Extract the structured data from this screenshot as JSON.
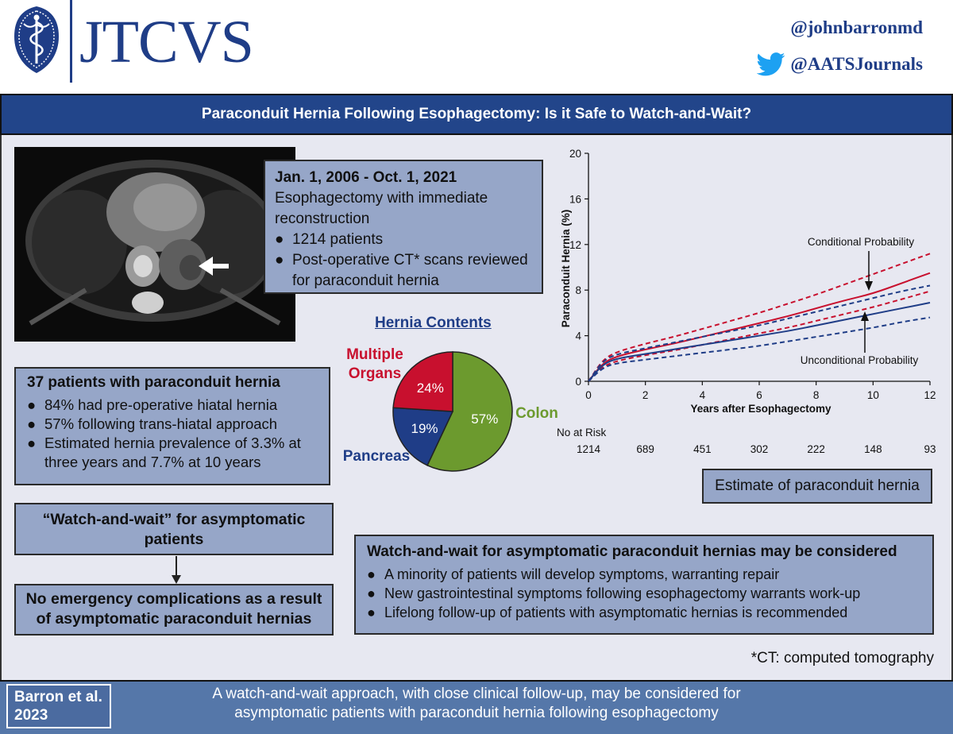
{
  "header": {
    "logo_text": "JTCVS",
    "handle_1": "@johnbarronmd",
    "handle_2": "@AATSJournals",
    "icons": [
      "caduceus-emblem",
      "twitter-bird-icon"
    ],
    "brand_color": "#1f3d87"
  },
  "title": "Paraconduit Hernia Following Esophagectomy: Is it Safe to Watch-and-Wait?",
  "study": {
    "dates": "Jan. 1, 2006 - Oct. 1, 2021",
    "line_1": "Esophagectomy with immediate",
    "line_2": "reconstruction",
    "bullets": [
      "1214 patients",
      "Post-operative CT* scans reviewed",
      "for paraconduit hernia"
    ]
  },
  "findings": {
    "heading": "37 patients with paraconduit hernia",
    "bullets": [
      "84% had pre-operative hiatal hernia",
      "57% following trans-hiatal approach",
      "Estimated hernia prevalence of 3.3% at",
      "three years and 7.7% at 10 years"
    ]
  },
  "watch_wait": {
    "line_1": "“Watch-and-wait” for asymptomatic",
    "line_2": "patients"
  },
  "emergency": {
    "line_1": "No emergency complications as a result",
    "line_2": "of asymptomatic paraconduit hernias"
  },
  "pie": {
    "title": "Hernia Contents",
    "labels": {
      "multiple": [
        "Multiple",
        "Organs"
      ],
      "pancreas": "Pancreas",
      "colon": "Colon"
    }
  },
  "estimate_label": "Estimate of paraconduit hernia",
  "conclusion": {
    "heading": "Watch-and-wait for asymptomatic paraconduit hernias may be considered",
    "bullets": [
      "A minority of patients will develop symptoms, warranting repair",
      "New gastrointestinal symptoms following esophagectomy warrants work-up",
      "Lifelong follow-up of patients with asymptomatic hernias is recommended"
    ]
  },
  "footnote": "*CT: computed tomography",
  "footer": {
    "author_1": "Barron et al.",
    "author_2": "2023",
    "text_1": "A watch-and-wait approach, with close clinical follow-up, may be considered for",
    "text_2": "asymptomatic patients with paraconduit hernia following esophagectomy"
  },
  "colors": {
    "title_bar": "#22458a",
    "panel": "#e7e8f1",
    "box": "#96a6c8",
    "footer": "#5577a9",
    "red": "#c8102e",
    "blue": "#1f3d87",
    "green": "#6c9a2e"
  },
  "chart_data": [
    {
      "type": "pie",
      "title": "Hernia Contents",
      "categories": [
        "Colon",
        "Pancreas",
        "Multiple Organs"
      ],
      "values": [
        57,
        19,
        24
      ],
      "value_labels": [
        "57%",
        "19%",
        "24%"
      ],
      "colors": [
        "#6c9a2e",
        "#1f3d87",
        "#c8102e"
      ]
    },
    {
      "type": "line",
      "title": "Estimate of paraconduit hernia",
      "xlabel": "Years after Esophagectomy",
      "ylabel": "Paraconduit Hernia (%)",
      "xlim": [
        0,
        12
      ],
      "ylim": [
        0,
        20
      ],
      "xticks": [
        0,
        2,
        4,
        6,
        8,
        10,
        12
      ],
      "yticks": [
        0,
        4,
        8,
        12,
        16,
        20
      ],
      "x": [
        0,
        0.5,
        1,
        2,
        3,
        4,
        5,
        6,
        7,
        8,
        9,
        10,
        11,
        12
      ],
      "series": [
        {
          "name": "Conditional Probability",
          "color": "#c8102e",
          "dash": false,
          "values": [
            0,
            1.6,
            2.2,
            2.8,
            3.3,
            3.9,
            4.5,
            5.1,
            5.7,
            6.4,
            7.1,
            7.7,
            8.6,
            9.5
          ]
        },
        {
          "name": "Conditional Probability upper CI",
          "color": "#c8102e",
          "dash": true,
          "values": [
            0,
            1.9,
            2.6,
            3.3,
            3.9,
            4.6,
            5.3,
            6.0,
            6.8,
            7.6,
            8.5,
            9.4,
            10.3,
            11.2
          ]
        },
        {
          "name": "Conditional Probability lower CI",
          "color": "#c8102e",
          "dash": true,
          "values": [
            0,
            1.3,
            1.8,
            2.3,
            2.7,
            3.2,
            3.7,
            4.2,
            4.7,
            5.3,
            5.9,
            6.5,
            7.2,
            7.9
          ]
        },
        {
          "name": "Unconditional Probability",
          "color": "#1f3d87",
          "dash": false,
          "values": [
            0,
            1.5,
            2.0,
            2.4,
            2.8,
            3.2,
            3.6,
            4.0,
            4.4,
            4.9,
            5.4,
            5.9,
            6.4,
            6.9
          ]
        },
        {
          "name": "Unconditional Probability upper CI",
          "color": "#1f3d87",
          "dash": true,
          "values": [
            0,
            1.8,
            2.4,
            2.9,
            3.4,
            3.9,
            4.4,
            4.9,
            5.5,
            6.1,
            6.7,
            7.3,
            7.9,
            8.4
          ]
        },
        {
          "name": "Unconditional Probability lower CI",
          "color": "#1f3d87",
          "dash": true,
          "values": [
            0,
            1.2,
            1.6,
            1.9,
            2.2,
            2.5,
            2.8,
            3.1,
            3.5,
            3.9,
            4.3,
            4.7,
            5.2,
            5.6
          ]
        }
      ],
      "annotations": [
        "Conditional Probability",
        "Unconditional Probability"
      ],
      "risk_table": {
        "label": "No at Risk",
        "years": [
          0,
          2,
          4,
          6,
          8,
          10,
          12
        ],
        "counts": [
          "1214",
          "689",
          "451",
          "302",
          "222",
          "148",
          "93"
        ]
      }
    }
  ]
}
